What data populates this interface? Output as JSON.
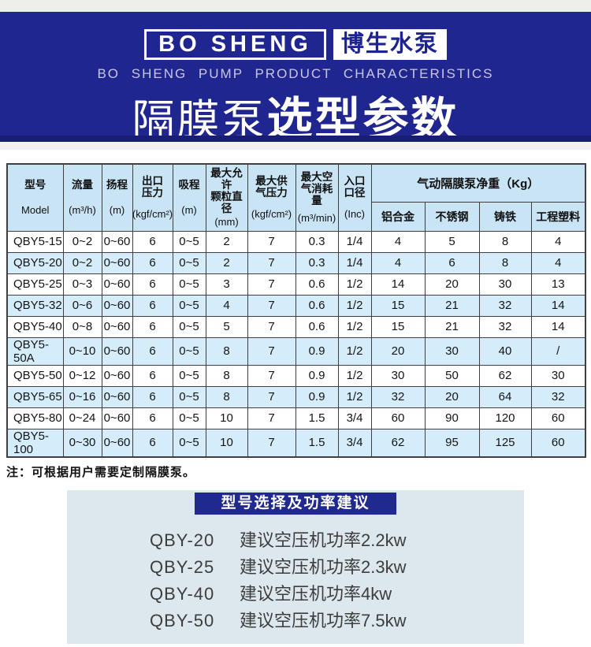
{
  "banner": {
    "logo_en": "BO SHENG",
    "logo_cn": "博生水泵",
    "subtitle": "BO SHENG PUMP PRODUCT CHARACTERISTICS",
    "title_light": "隔膜泵",
    "title_bold": "选型参数",
    "bg_color": "#20268f",
    "strip_color": "#191d74"
  },
  "table": {
    "headers": [
      {
        "name": "型号",
        "unit": "Model"
      },
      {
        "name": "流量",
        "unit": "(m³/h)"
      },
      {
        "name": "扬程",
        "unit": "(m)"
      },
      {
        "name": "出口\n压力",
        "unit": "(kgf/cm²)"
      },
      {
        "name": "吸程",
        "unit": "(m)"
      },
      {
        "name": "最大允许\n颗粒直径",
        "unit": "(mm)"
      },
      {
        "name": "最大供\n气压力",
        "unit": "(kgf/cm²)"
      },
      {
        "name": "最大空\n气消耗量",
        "unit": "(m³/min)"
      },
      {
        "name": "入口\n口径",
        "unit": "(Inc)"
      }
    ],
    "weight_group": {
      "label": "气动隔膜泵净重（Kg）",
      "columns": [
        "铝合金",
        "不锈钢",
        "铸铁",
        "工程塑料"
      ]
    },
    "rows": [
      {
        "cells": [
          "QBY5-15",
          "0~2",
          "0~60",
          "6",
          "0~5",
          "2",
          "7",
          "0.3",
          "1/4",
          "4",
          "5",
          "8",
          "4"
        ]
      },
      {
        "cells": [
          "QBY5-20",
          "0~2",
          "0~60",
          "6",
          "0~5",
          "2",
          "7",
          "0.3",
          "1/4",
          "4",
          "6",
          "8",
          "4"
        ]
      },
      {
        "cells": [
          "QBY5-25",
          "0~3",
          "0~60",
          "6",
          "0~5",
          "3",
          "7",
          "0.6",
          "1/2",
          "14",
          "20",
          "30",
          "13"
        ]
      },
      {
        "cells": [
          "QBY5-32",
          "0~6",
          "0~60",
          "6",
          "0~5",
          "4",
          "7",
          "0.6",
          "1/2",
          "15",
          "21",
          "32",
          "14"
        ]
      },
      {
        "cells": [
          "QBY5-40",
          "0~8",
          "0~60",
          "6",
          "0~5",
          "5",
          "7",
          "0.6",
          "1/2",
          "15",
          "21",
          "32",
          "14"
        ]
      },
      {
        "cells": [
          "QBY5-50A",
          "0~10",
          "0~60",
          "6",
          "0~5",
          "8",
          "7",
          "0.9",
          "1/2",
          "20",
          "30",
          "40",
          "/"
        ]
      },
      {
        "cells": [
          "QBY5-50",
          "0~12",
          "0~60",
          "6",
          "0~5",
          "8",
          "7",
          "0.9",
          "1/2",
          "30",
          "50",
          "62",
          "30"
        ]
      },
      {
        "cells": [
          "QBY5-65",
          "0~16",
          "0~60",
          "6",
          "0~5",
          "8",
          "7",
          "0.9",
          "1/2",
          "32",
          "20",
          "64",
          "32"
        ]
      },
      {
        "cells": [
          "QBY5-80",
          "0~24",
          "0~60",
          "6",
          "0~5",
          "10",
          "7",
          "1.5",
          "3/4",
          "60",
          "90",
          "120",
          "60"
        ]
      },
      {
        "cells": [
          "QBY5-100",
          "0~30",
          "0~60",
          "6",
          "0~5",
          "10",
          "7",
          "1.5",
          "3/4",
          "62",
          "95",
          "125",
          "60"
        ]
      }
    ]
  },
  "note": "注：可根据用户需要定制隔膜泵。",
  "recommendation": {
    "title": "型号选择及功率建议",
    "items": [
      {
        "model": "QBY-20",
        "text": "建议空压机功率2.2kw"
      },
      {
        "model": "QBY-25",
        "text": "建议空压机功率2.3kw"
      },
      {
        "model": "QBY-40",
        "text": "建议空压机功率4kw"
      },
      {
        "model": "QBY-50",
        "text": "建议空压机功率7.5kw"
      }
    ]
  },
  "colors": {
    "banner_blue": "#20268f",
    "header_cell_blue": "#c9e4f5",
    "alt_row_blue": "#d5edfb",
    "card_bg": "#dce7ee",
    "card_header_blue": "#202a8e"
  }
}
